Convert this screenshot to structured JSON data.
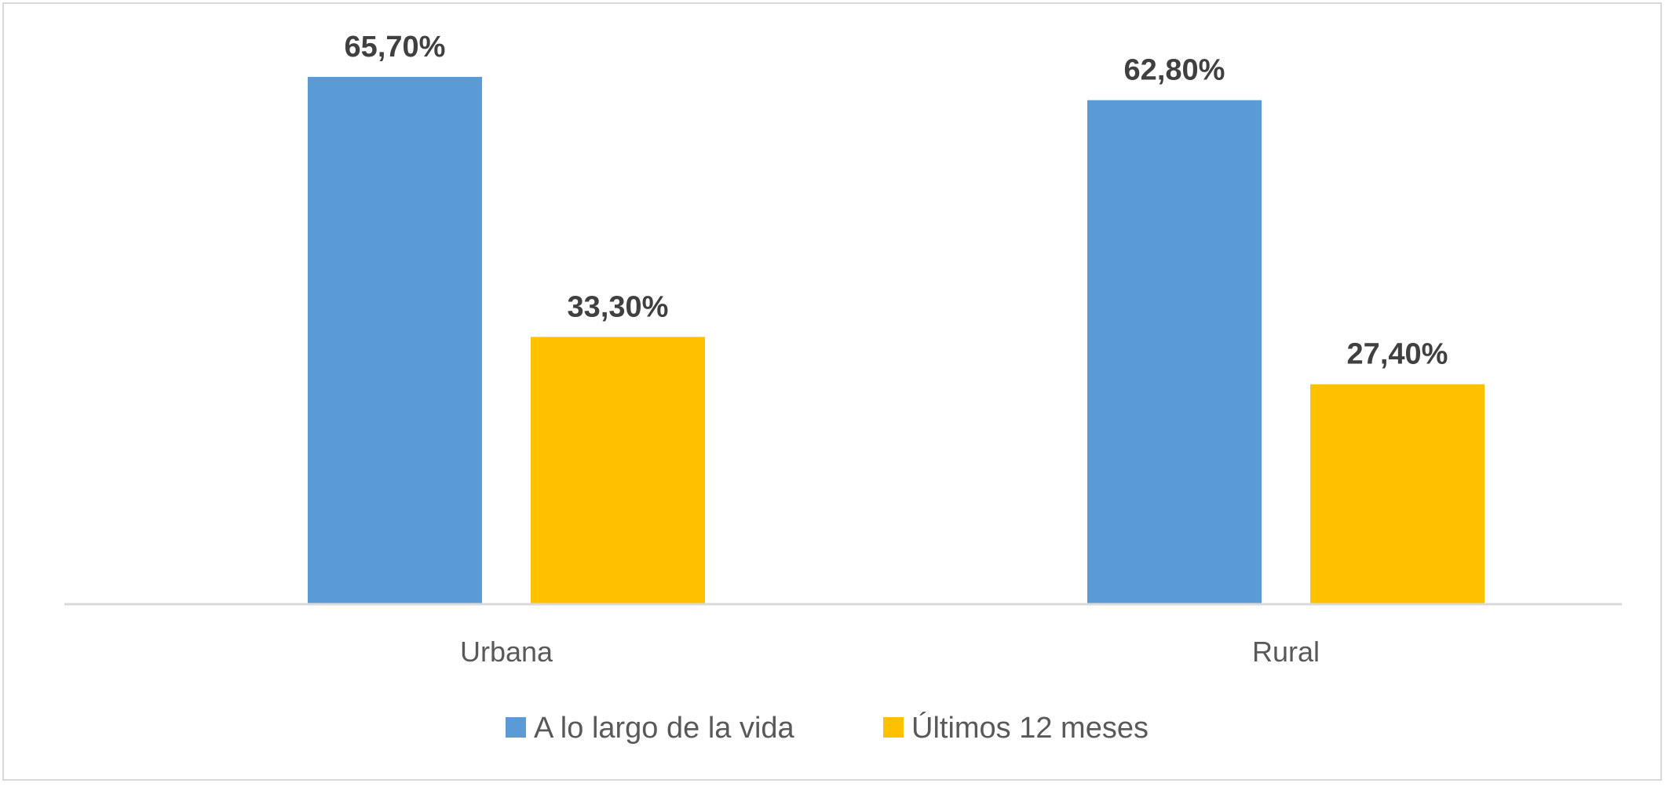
{
  "chart_data": {
    "type": "bar",
    "categories": [
      "Urbana",
      "Rural"
    ],
    "series": [
      {
        "name": "A lo largo de la vida",
        "values": [
          65.7,
          62.8
        ],
        "labels": [
          "65,70%",
          "62,80%"
        ],
        "color": "#5b9bd5"
      },
      {
        "name": "Últimos 12 meses",
        "values": [
          33.3,
          27.4
        ],
        "labels": [
          "33,30%",
          "27,40%"
        ],
        "color": "#ffc000"
      }
    ],
    "title": "",
    "xlabel": "",
    "ylabel": "",
    "ylim": [
      0,
      70
    ],
    "grid": false,
    "legend_position": "bottom"
  }
}
